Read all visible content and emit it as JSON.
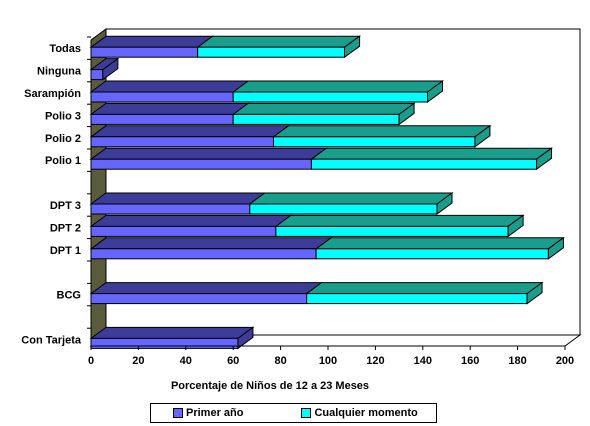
{
  "chart_data": {
    "type": "bar",
    "orientation": "horizontal",
    "stacked": true,
    "three_d": true,
    "title": "",
    "xlabel": "Porcentaje de Niños de 12 a 23 Meses",
    "ylabel": "",
    "xlim": [
      0,
      200
    ],
    "x_ticks": [
      "0",
      "20",
      "40",
      "60",
      "80",
      "100",
      "120",
      "140",
      "160",
      "180",
      "200"
    ],
    "categories": [
      "Todas",
      "Ninguna",
      "Sarampión",
      "Polio 3",
      "Polio 2",
      "Polio 1",
      "",
      "DPT 3",
      "DPT 2",
      "DPT 1",
      "",
      "BCG",
      "",
      "Con Tarjeta"
    ],
    "series": [
      {
        "name": "Primer año",
        "color": "#6666ff",
        "values": [
          45,
          5,
          60,
          60,
          77,
          93,
          null,
          67,
          78,
          95,
          null,
          91,
          null,
          62
        ]
      },
      {
        "name": "Cualquier momento",
        "color": "#00ffff",
        "values": [
          62,
          0,
          82,
          70,
          85,
          95,
          null,
          79,
          98,
          98,
          null,
          93,
          null,
          0
        ]
      }
    ],
    "grid": false,
    "legend_position": "bottom",
    "colors": {
      "wall": "#5a5a3c",
      "top_left_series": "#3d3d99",
      "top_right_series": "#1a9e8c"
    }
  }
}
